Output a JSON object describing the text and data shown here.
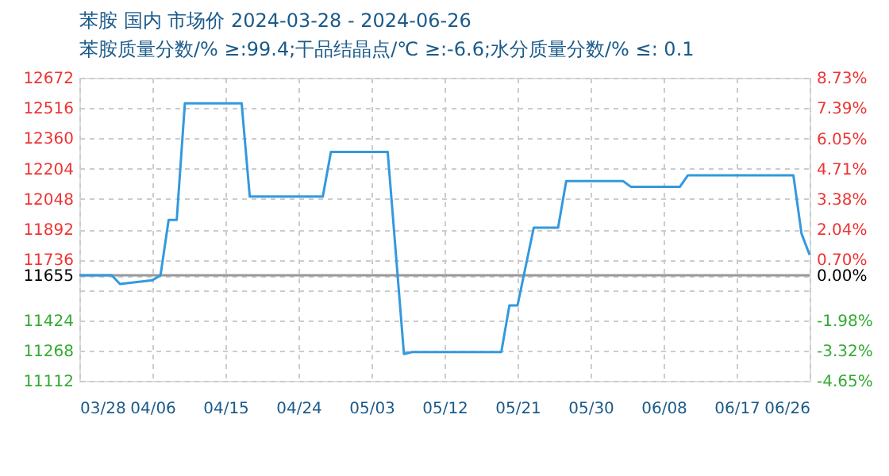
{
  "chart_data": {
    "type": "line",
    "title": "苯胺 国内 市场价 2024-03-28 - 2024-06-26",
    "subtitle": "苯胺质量分数/% ≥:99.4;干品结晶点/℃   ≥:-6.6;水分质量分数/%  ≤: 0.1",
    "x": [
      "2024-03-28",
      "2024-04-01",
      "2024-04-02",
      "2024-04-06",
      "2024-04-07",
      "2024-04-08",
      "2024-04-09",
      "2024-04-10",
      "2024-04-17",
      "2024-04-18",
      "2024-04-27",
      "2024-04-28",
      "2024-05-05",
      "2024-05-07",
      "2024-05-08",
      "2024-05-19",
      "2024-05-20",
      "2024-05-21",
      "2024-05-23",
      "2024-05-26",
      "2024-05-27",
      "2024-06-03",
      "2024-06-04",
      "2024-06-10",
      "2024-06-11",
      "2024-06-24",
      "2024-06-25",
      "2024-06-26"
    ],
    "series": [
      {
        "color": "#3399dd",
        "values": [
          11655,
          11655,
          11610,
          11630,
          11655,
          11940,
          11940,
          12540,
          12540,
          12060,
          12060,
          12290,
          12290,
          11250,
          11260,
          11260,
          11500,
          11500,
          11900,
          11900,
          12140,
          12140,
          12110,
          12110,
          12170,
          12170,
          11870,
          11760
        ]
      }
    ],
    "xlim": [
      "2024-03-28",
      "2024-06-26"
    ],
    "xticks": [
      {
        "value": "2024-03-28",
        "label": "03/28"
      },
      {
        "value": "2024-04-06",
        "label": "04/06"
      },
      {
        "value": "2024-04-15",
        "label": "04/15"
      },
      {
        "value": "2024-04-24",
        "label": "04/24"
      },
      {
        "value": "2024-05-03",
        "label": "05/03"
      },
      {
        "value": "2024-05-12",
        "label": "05/12"
      },
      {
        "value": "2024-05-21",
        "label": "05/21"
      },
      {
        "value": "2024-05-30",
        "label": "05/30"
      },
      {
        "value": "2024-06-08",
        "label": "06/08"
      },
      {
        "value": "2024-06-17",
        "label": "06/17"
      },
      {
        "value": "2024-06-26",
        "label": "06/26"
      }
    ],
    "ylim": [
      11112,
      12672
    ],
    "yticks": [
      11112,
      11268,
      11424,
      {
        "value": 11580,
        "label": null
      },
      11655,
      11736,
      11892,
      12048,
      12204,
      12360,
      12516,
      12672
    ],
    "y2lim": [
      -4.65,
      8.73
    ],
    "y2ticks": [
      {
        "value": -4.65,
        "label": "-4.65%"
      },
      {
        "value": -3.32,
        "label": "-3.32%"
      },
      {
        "value": -1.98,
        "label": "-1.98%"
      },
      {
        "value": 0,
        "label": "0.00%"
      },
      {
        "value": 0.7,
        "label": "0.70%"
      },
      {
        "value": 2.04,
        "label": "2.04%"
      },
      {
        "value": 3.38,
        "label": "3.38%"
      },
      {
        "value": 4.71,
        "label": "4.71%"
      },
      {
        "value": 6.05,
        "label": "6.05%"
      },
      {
        "value": 7.39,
        "label": "7.39%"
      },
      {
        "value": 8.73,
        "label": "8.73%"
      }
    ],
    "ref_lines": [
      {
        "axis": "y",
        "value": 11655,
        "color": "#999999"
      }
    ],
    "grid": true,
    "legend": false,
    "marker": "none",
    "line_style": "solid"
  }
}
